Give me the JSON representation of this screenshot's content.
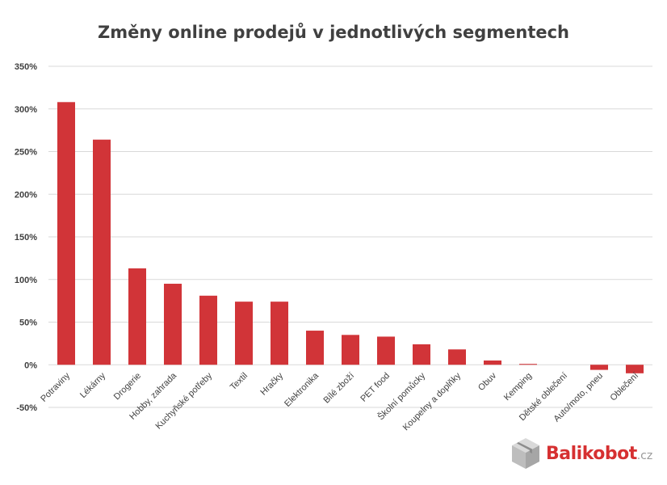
{
  "chart_data": {
    "type": "bar",
    "title": "Změny online prodejů v jednotlivých segmentech",
    "xlabel": "",
    "ylabel": "",
    "ylim": [
      -50,
      350
    ],
    "y_ticks": [
      {
        "value": 350,
        "label": "350%"
      },
      {
        "value": 300,
        "label": "300%"
      },
      {
        "value": 250,
        "label": "250%"
      },
      {
        "value": 200,
        "label": "200%"
      },
      {
        "value": 150,
        "label": "150%"
      },
      {
        "value": 100,
        "label": "100%"
      },
      {
        "value": 50,
        "label": "50%"
      },
      {
        "value": 0,
        "label": "0%"
      },
      {
        "value": -50,
        "label": "-50%"
      }
    ],
    "grid": true,
    "legend": "none",
    "bar_color": "#d13438",
    "categories": [
      "Potraviny",
      "Lékárny",
      "Drogerie",
      "Hobby, zahrada",
      "Kuchyňské potřeby",
      "Textil",
      "Hračky",
      "Elektronika",
      "Bílé zboží",
      "PET food",
      "Školní pomůcky",
      "Koupelny a doplňky",
      "Obuv",
      "Kemping",
      "Dětské oblečení",
      "Auto/moto, pneu",
      "Oblečení"
    ],
    "values": [
      308,
      264,
      113,
      95,
      81,
      74,
      74,
      40,
      35,
      33,
      24,
      18,
      5,
      1,
      0,
      -6,
      -10
    ]
  },
  "brand": {
    "name": "Balikobot",
    "suffix": ".cz",
    "logo_icon": "box-icon",
    "color": "#d63031"
  }
}
